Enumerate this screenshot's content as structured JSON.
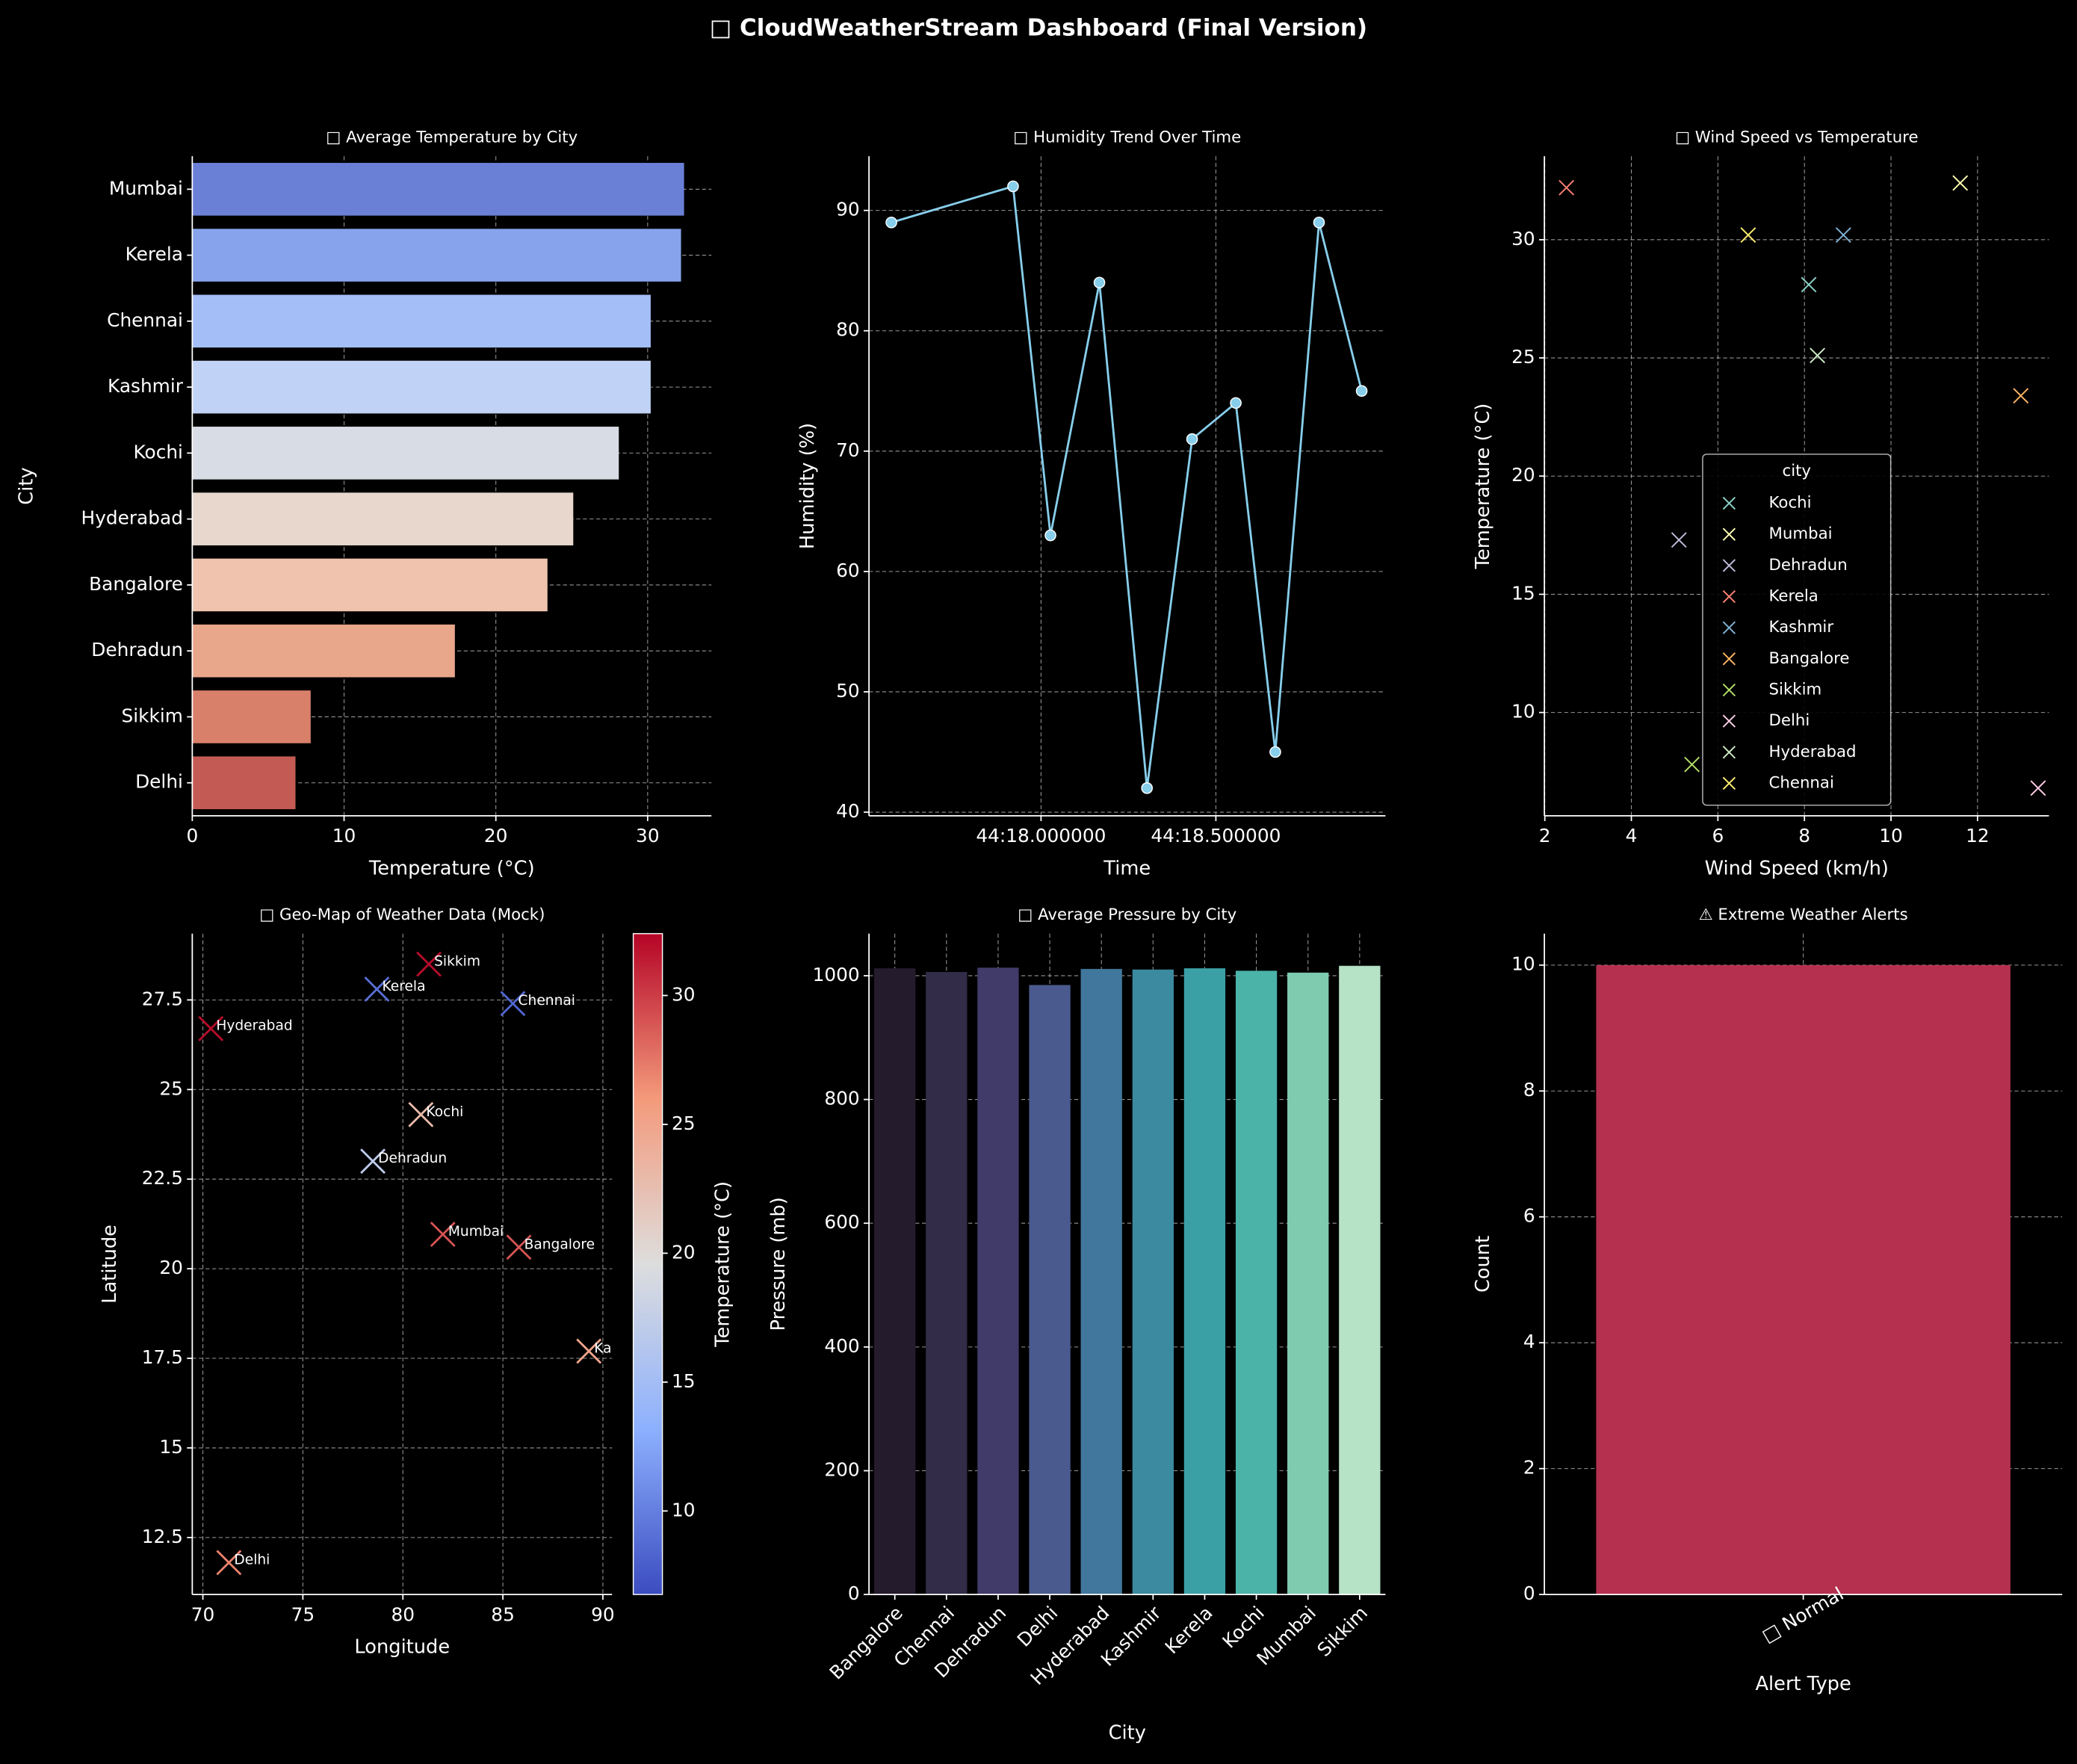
{
  "title": "□ CloudWeatherStream Dashboard (Final Version)",
  "chart_data": [
    {
      "type": "bar",
      "orientation": "horizontal",
      "title": "□ Average Temperature by City",
      "xlabel": "Temperature (°C)",
      "ylabel": "City",
      "categories": [
        "Mumbai",
        "Kerela",
        "Chennai",
        "Kashmir",
        "Kochi",
        "Hyderabad",
        "Bangalore",
        "Dehradun",
        "Sikkim",
        "Delhi"
      ],
      "values": [
        32.4,
        32.2,
        30.2,
        30.2,
        28.1,
        25.1,
        23.4,
        17.3,
        7.8,
        6.8
      ],
      "colors": [
        "#6a7fd6",
        "#86a3ec",
        "#a4bff7",
        "#c0d2f5",
        "#d8dce5",
        "#e7d7cd",
        "#efc3ae",
        "#e8a68b",
        "#d8806a",
        "#c35b54"
      ],
      "xlim": [
        0,
        34.2
      ],
      "xticks": [
        0,
        10,
        20,
        30
      ],
      "grid": true
    },
    {
      "type": "line",
      "title": "□ Humidity Trend Over Time",
      "xlabel": "Time",
      "ylabel": "Humidity (%)",
      "x": [
        17.572,
        17.92,
        18.027,
        18.167,
        18.303,
        18.432,
        18.557,
        18.67,
        18.795,
        18.917
      ],
      "values": [
        89,
        92,
        63,
        84,
        42,
        71,
        74,
        45,
        89,
        75
      ],
      "color": "#87ceeb",
      "xlim": [
        17.508,
        18.985
      ],
      "xticks": [
        {
          "value": 18.0,
          "label": "44:18.000000"
        },
        {
          "value": 18.5,
          "label": "44:18.500000"
        }
      ],
      "ylim": [
        39.7,
        94.5
      ],
      "yticks": [
        40,
        50,
        60,
        70,
        80,
        90
      ],
      "grid": true
    },
    {
      "type": "scatter",
      "title": "□ Wind Speed vs Temperature",
      "xlabel": "Wind Speed (km/h)",
      "ylabel": "Temperature (°C)",
      "legend_title": "city",
      "legend": "lower center",
      "series": [
        {
          "name": "Kochi",
          "color": "#8dd3c7",
          "x": [
            8.1
          ],
          "values": [
            28.1
          ]
        },
        {
          "name": "Mumbai",
          "color": "#ffffb3",
          "x": [
            11.6
          ],
          "values": [
            32.4
          ]
        },
        {
          "name": "Dehradun",
          "color": "#bebada",
          "x": [
            5.1
          ],
          "values": [
            17.3
          ]
        },
        {
          "name": "Kerela",
          "color": "#fb8072",
          "x": [
            2.5
          ],
          "values": [
            32.2
          ]
        },
        {
          "name": "Kashmir",
          "color": "#80b1d3",
          "x": [
            8.9
          ],
          "values": [
            30.2
          ]
        },
        {
          "name": "Bangalore",
          "color": "#fdb462",
          "x": [
            13.0
          ],
          "values": [
            23.4
          ]
        },
        {
          "name": "Sikkim",
          "color": "#b3de69",
          "x": [
            5.4
          ],
          "values": [
            7.8
          ]
        },
        {
          "name": "Delhi",
          "color": "#fccde5",
          "x": [
            13.4
          ],
          "values": [
            6.8
          ]
        },
        {
          "name": "Hyderabad",
          "color": "#ccebc5",
          "x": [
            8.3
          ],
          "values": [
            25.1
          ]
        },
        {
          "name": "Chennai",
          "color": "#ffed6f",
          "x": [
            6.7
          ],
          "values": [
            30.2
          ]
        }
      ],
      "xlim": [
        1.99,
        13.65
      ],
      "xticks": [
        2,
        4,
        6,
        8,
        10,
        12
      ],
      "ylim": [
        5.63,
        33.53
      ],
      "yticks": [
        10,
        15,
        20,
        25,
        30
      ],
      "grid": true
    },
    {
      "type": "scatter",
      "title": "□ Geo-Map of Weather Data (Mock)",
      "xlabel": "Longitude",
      "ylabel": "Latitude",
      "labels": [
        "Sikkim",
        "Kerela",
        "Chennai",
        "Hyderabad",
        "Kochi",
        "Dehradun",
        "Mumbai",
        "Bangalore",
        "Kashmir",
        "Delhi"
      ],
      "x": [
        81.3,
        78.7,
        85.5,
        70.4,
        80.9,
        78.5,
        82.0,
        85.8,
        89.3,
        71.3
      ],
      "values": [
        28.5,
        27.8,
        27.4,
        26.7,
        24.3,
        23.0,
        20.96,
        20.6,
        17.7,
        11.8
      ],
      "color_values": [
        32,
        9,
        8.5,
        32,
        23,
        17,
        29,
        29,
        25,
        27
      ],
      "colormap": "coolwarm",
      "clim": [
        6.76,
        32.4
      ],
      "colorbar_ticks": [
        10,
        15,
        20,
        25,
        30
      ],
      "colorbar_label": "Temperature (°C)",
      "xlim": [
        69.47,
        90.46
      ],
      "xticks": [
        70,
        75,
        80,
        85,
        90
      ],
      "ylim": [
        10.91,
        29.35
      ],
      "yticks": [
        12.5,
        15.0,
        17.5,
        20.0,
        22.5,
        25.0,
        27.5
      ],
      "grid": true
    },
    {
      "type": "bar",
      "title": "□ Average Pressure by City",
      "xlabel": "City",
      "ylabel": "Pressure (mb)",
      "categories": [
        "Bangalore",
        "Chennai",
        "Dehradun",
        "Delhi",
        "Hyderabad",
        "Kashmir",
        "Kerela",
        "Kochi",
        "Mumbai",
        "Sikkim"
      ],
      "values": [
        1012,
        1006,
        1013,
        985,
        1011,
        1010,
        1012,
        1008,
        1005,
        1016
      ],
      "colors": [
        "#241b2d",
        "#322c48",
        "#413b69",
        "#4a5a8e",
        "#41779c",
        "#3c8aa0",
        "#3b9fa6",
        "#4bb3a8",
        "#7ecbb0",
        "#b6e2c5"
      ],
      "ylim": [
        0,
        1068
      ],
      "yticks": [
        0,
        200,
        400,
        600,
        800,
        1000
      ],
      "grid": true
    },
    {
      "type": "bar",
      "title": "⚠ Extreme Weather Alerts",
      "xlabel": "Alert Type",
      "ylabel": "Count",
      "categories": [
        "□ Normal"
      ],
      "values": [
        10
      ],
      "color": "#b5304f",
      "ylim": [
        0,
        10.5
      ],
      "yticks": [
        0,
        2,
        4,
        6,
        8,
        10
      ],
      "grid": true
    }
  ]
}
